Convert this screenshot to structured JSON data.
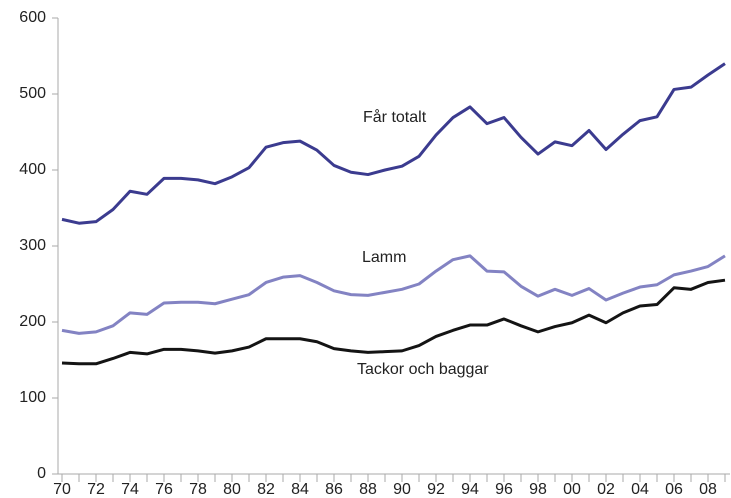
{
  "chart_data": {
    "type": "line",
    "categories": [
      "70",
      null,
      "72",
      null,
      "74",
      null,
      "76",
      null,
      "78",
      null,
      "80",
      null,
      "82",
      null,
      "84",
      null,
      "86",
      null,
      "88",
      null,
      "90",
      null,
      "92",
      null,
      "94",
      null,
      "96",
      null,
      "98",
      null,
      "00",
      null,
      "02",
      null,
      "04",
      null,
      "06",
      null,
      "08",
      null
    ],
    "series": [
      {
        "name": "Får totalt",
        "color": "#3b3b8f",
        "values": [
          335,
          330,
          332,
          348,
          372,
          368,
          389,
          389,
          387,
          382,
          391,
          403,
          430,
          436,
          438,
          426,
          406,
          397,
          394,
          400,
          405,
          418,
          446,
          469,
          483,
          461,
          469,
          443,
          421,
          437,
          432,
          452,
          427,
          447,
          465,
          470,
          506,
          509,
          525,
          540
        ]
      },
      {
        "name": "Lamm",
        "color": "#8383c3",
        "values": [
          189,
          185,
          187,
          195,
          212,
          210,
          225,
          226,
          226,
          224,
          230,
          236,
          252,
          259,
          261,
          252,
          241,
          236,
          235,
          239,
          243,
          250,
          267,
          282,
          287,
          267,
          266,
          247,
          234,
          243,
          235,
          244,
          229,
          238,
          246,
          249,
          262,
          267,
          273,
          287
        ]
      },
      {
        "name": "Tackor och baggar",
        "color": "#141414",
        "values": [
          146,
          145,
          145,
          152,
          160,
          158,
          164,
          164,
          162,
          159,
          162,
          167,
          178,
          178,
          178,
          174,
          165,
          162,
          160,
          161,
          162,
          169,
          181,
          189,
          196,
          196,
          204,
          195,
          187,
          194,
          199,
          209,
          199,
          212,
          221,
          223,
          245,
          243,
          252,
          255
        ]
      }
    ],
    "ylim": [
      0,
      600
    ],
    "yticks": [
      0,
      100,
      200,
      300,
      400,
      500,
      600
    ]
  }
}
